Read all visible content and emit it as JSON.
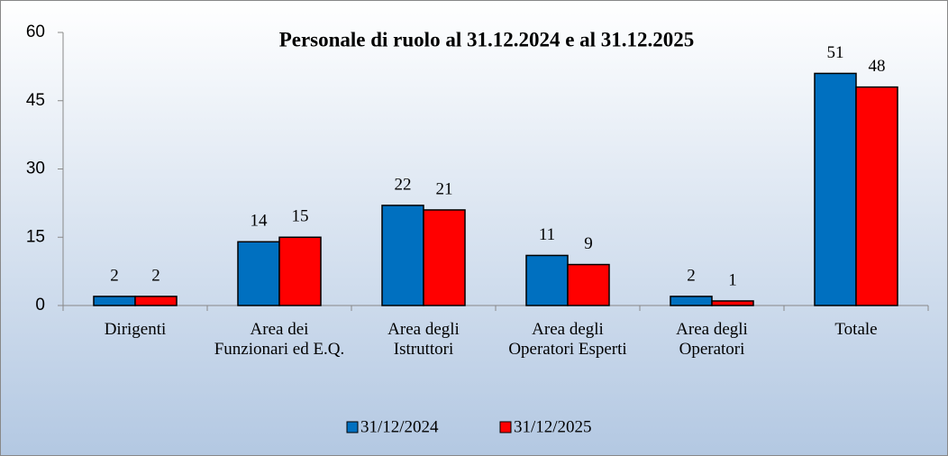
{
  "chart_data": {
    "type": "bar",
    "title": "Personale di ruolo al 31.12.2024 e al 31.12.2025",
    "categories": [
      "Dirigenti",
      "Area dei Funzionari ed E.Q.",
      "Area degli Istruttori",
      "Area degli Operatori Esperti",
      "Area degli Operatori",
      "Totale"
    ],
    "series": [
      {
        "name": "31/12/2024",
        "color": "#0070c0",
        "values": [
          2,
          14,
          22,
          11,
          2,
          51
        ]
      },
      {
        "name": "31/12/2025",
        "color": "#ff0000",
        "values": [
          2,
          15,
          21,
          9,
          1,
          48
        ]
      }
    ],
    "ylim": [
      0,
      60
    ],
    "yticks": [
      0,
      15,
      30,
      45,
      60
    ],
    "grid": false,
    "legend": "bottom"
  }
}
